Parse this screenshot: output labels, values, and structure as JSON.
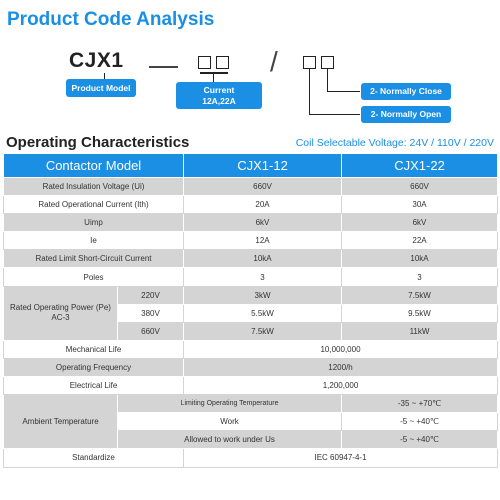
{
  "title": "Product Code Analysis",
  "diagram": {
    "model_code": "CJX1",
    "product_model_label": "Product Model",
    "current_label": "Current",
    "current_values": "12A,22A",
    "normally_close_label": "2- Normally Close",
    "normally_open_label": "2- Normally Open"
  },
  "section_title": "Operating Characteristics",
  "coil_voltage": "Coil Selectable Voltage: 24V / 110V / 220V",
  "table": {
    "header": {
      "model": "Contactor Model",
      "col1": "CJX1-12",
      "col2": "CJX1-22"
    },
    "rows": [
      {
        "label": "Rated Insulation Voltage (Ui)",
        "v1": "660V",
        "v2": "660V"
      },
      {
        "label": "Rated Operational Current (Ith)",
        "v1": "20A",
        "v2": "30A"
      },
      {
        "label": "Uimp",
        "v1": "6kV",
        "v2": "6kV"
      },
      {
        "label": "Ie",
        "v1": "12A",
        "v2": "22A"
      },
      {
        "label": "Rated Limit Short-Circuit Current",
        "v1": "10kA",
        "v2": "10kA"
      },
      {
        "label": "Poles",
        "v1": "3",
        "v2": "3"
      }
    ],
    "power": {
      "label": "Rated Operating Power (Pe) AC-3",
      "rows": [
        {
          "voltage": "220V",
          "v1": "3kW",
          "v2": "7.5kW"
        },
        {
          "voltage": "380V",
          "v1": "5.5kW",
          "v2": "9.5kW"
        },
        {
          "voltage": "660V",
          "v1": "7.5kW",
          "v2": "11kW"
        }
      ]
    },
    "mechanical_life": {
      "label": "Mechanical Life",
      "value": "10,000,000"
    },
    "operating_frequency": {
      "label": "Operating Frequency",
      "value": "1200/h"
    },
    "electrical_life": {
      "label": "Electrical Life",
      "value": "1,200,000"
    },
    "ambient": {
      "label": "Ambient Temperature",
      "rows": [
        {
          "label": "Limiting Operating Temperature",
          "value": "-35 ~ +70℃"
        },
        {
          "label": "Work",
          "value": "-5 ~ +40℃"
        },
        {
          "label": "Allowed to work under Us",
          "value": "-5 ~ +40℃"
        }
      ]
    },
    "standardize": {
      "label": "Standardize",
      "value": "IEC 60947-4-1"
    }
  },
  "colors": {
    "accent": "#1a8fe3",
    "row_gray": "#d4d4d4"
  }
}
